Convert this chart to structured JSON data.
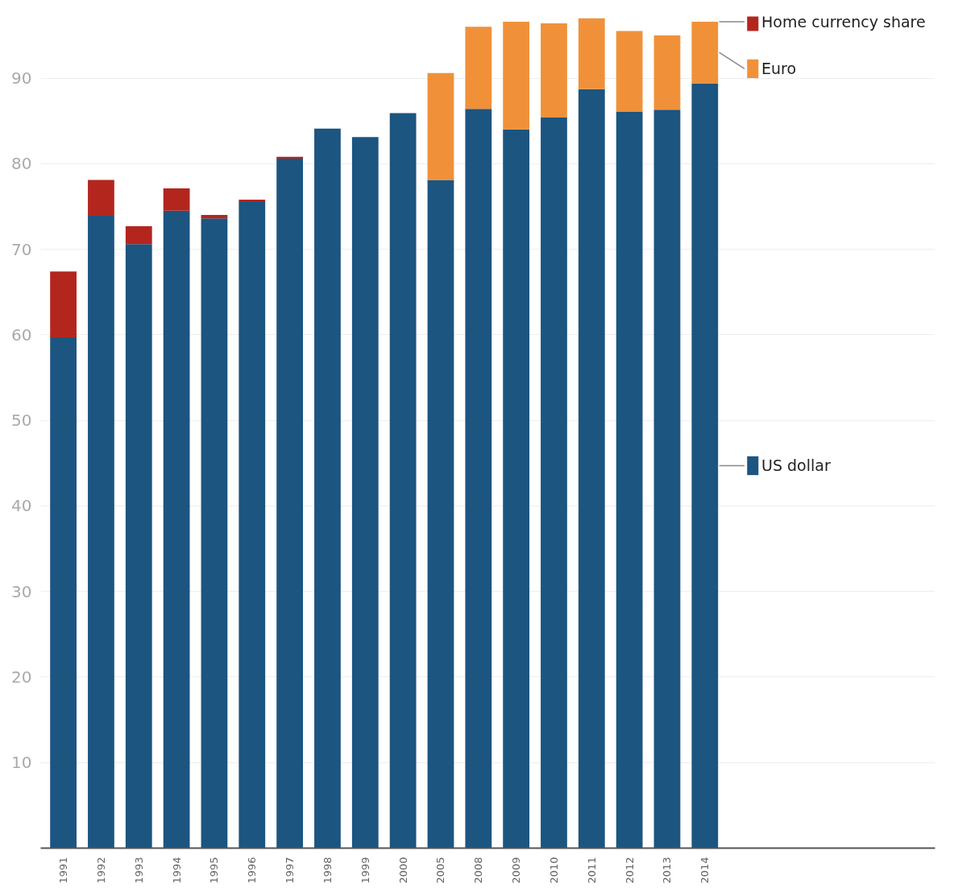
{
  "chart_data": {
    "type": "bar",
    "stacked": true,
    "categories": [
      "1991",
      "1992",
      "1993",
      "1994",
      "1995",
      "1996",
      "1997",
      "1998",
      "1999",
      "2000",
      "2005",
      "2008",
      "2009",
      "2010",
      "2011",
      "2012",
      "2013",
      "2014"
    ],
    "series": [
      {
        "name": "US dollar",
        "color": "#1b5580",
        "values": [
          59.7,
          73.9,
          70.6,
          74.5,
          73.6,
          75.6,
          80.6,
          84.1,
          83.1,
          85.9,
          78.1,
          86.4,
          84.0,
          85.4,
          88.7,
          86.1,
          86.3,
          89.4
        ]
      },
      {
        "name": "Home currency share",
        "color": "#b3261e",
        "values": [
          7.7,
          4.2,
          2.1,
          2.6,
          0.4,
          0.2,
          0.2,
          null,
          null,
          null,
          null,
          null,
          null,
          null,
          null,
          null,
          null,
          null
        ]
      },
      {
        "name": "Euro",
        "color": "#f0913a",
        "values": [
          null,
          null,
          null,
          null,
          null,
          null,
          null,
          null,
          null,
          null,
          12.5,
          9.6,
          12.6,
          11.0,
          8.3,
          9.4,
          8.7,
          7.2
        ]
      }
    ],
    "ylim": [
      0,
      97.2
    ],
    "yticks": [
      10,
      20,
      30,
      40,
      50,
      60,
      70,
      80,
      90
    ],
    "grid": "y",
    "legend": "right"
  }
}
